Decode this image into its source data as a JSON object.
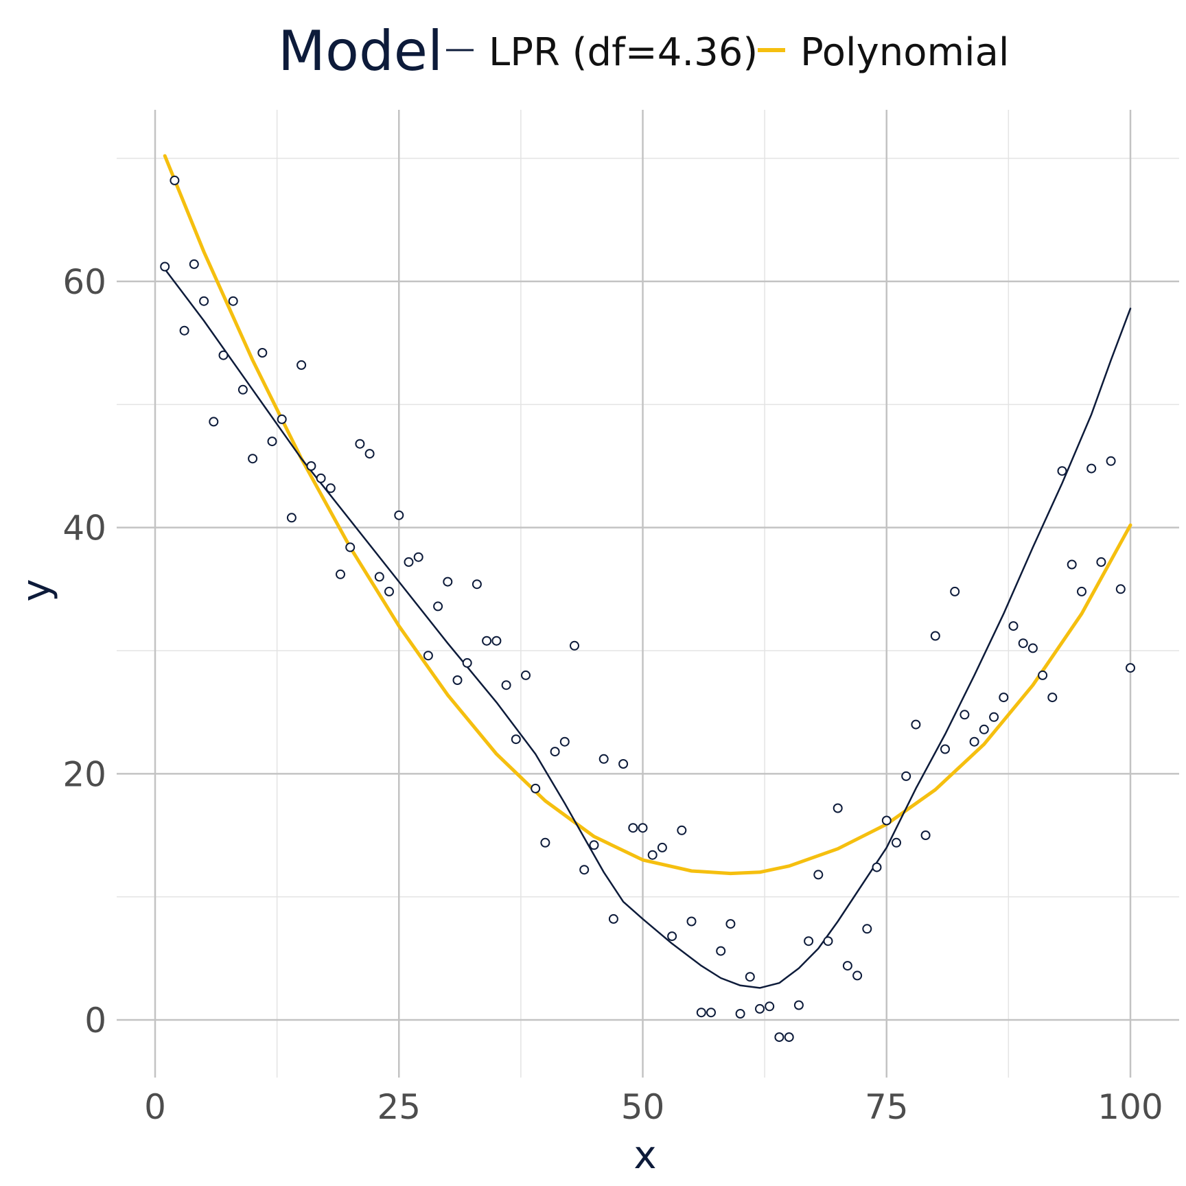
{
  "chart_data": {
    "type": "scatter",
    "title": "",
    "xlabel": "x",
    "ylabel": "y",
    "xlim": [
      -4,
      101
    ],
    "ylim": [
      -5,
      71
    ],
    "x_ticks": [
      0,
      25,
      50,
      75,
      100
    ],
    "x_tick_labels": [
      "0",
      "25",
      "50",
      "75",
      "100"
    ],
    "y_ticks": [
      0,
      20,
      40,
      60
    ],
    "y_tick_labels": [
      "0",
      "20",
      "40",
      "60"
    ],
    "grid": true,
    "legend": {
      "title": "Model",
      "placement": "top",
      "entries": [
        {
          "label": "LPR (df=4.36)",
          "color": "#0d1b3a"
        },
        {
          "label": "Polynomial",
          "color": "#f5bf0f"
        }
      ]
    },
    "points": {
      "color": "#0d1b3a",
      "x": [
        1,
        2,
        3,
        4,
        5,
        6,
        7,
        8,
        9,
        10,
        11,
        12,
        13,
        14,
        15,
        16,
        17,
        18,
        19,
        20,
        21,
        22,
        23,
        24,
        25,
        26,
        27,
        28,
        29,
        30,
        31,
        32,
        33,
        34,
        35,
        36,
        37,
        38,
        39,
        40,
        41,
        42,
        43,
        44,
        45,
        46,
        47,
        48,
        49,
        50,
        51,
        52,
        53,
        54,
        55,
        56,
        57,
        58,
        59,
        60,
        61,
        62,
        63,
        64,
        65,
        66,
        67,
        68,
        69,
        70,
        71,
        72,
        73,
        74,
        75,
        76,
        77,
        78,
        79,
        80,
        81,
        82,
        83,
        84,
        85,
        86,
        87,
        88,
        89,
        90,
        91,
        92,
        93,
        94,
        95,
        96,
        97,
        98,
        99,
        100
      ],
      "y": [
        61.2,
        68.2,
        56.0,
        61.4,
        58.4,
        48.6,
        54.0,
        58.4,
        51.2,
        45.6,
        54.2,
        47.0,
        48.8,
        40.8,
        53.2,
        45.0,
        44.0,
        43.2,
        36.2,
        38.4,
        46.8,
        46.0,
        36.0,
        34.8,
        41.0,
        37.2,
        37.6,
        29.6,
        33.6,
        35.6,
        27.6,
        29.0,
        35.4,
        30.8,
        30.8,
        27.2,
        22.8,
        28.0,
        18.8,
        14.4,
        21.8,
        22.6,
        30.4,
        12.2,
        14.2,
        21.2,
        8.2,
        20.8,
        15.6,
        15.6,
        13.4,
        14.0,
        6.8,
        15.4,
        8.0,
        0.6,
        0.6,
        5.6,
        7.8,
        0.5,
        3.5,
        0.9,
        1.1,
        -1.4,
        -1.4,
        1.2,
        6.4,
        11.8,
        6.4,
        17.2,
        4.4,
        3.6,
        7.4,
        12.4,
        16.2,
        14.4,
        19.8,
        24.0,
        15.0,
        31.2,
        22.0,
        34.8,
        24.8,
        22.6,
        23.6,
        24.6,
        26.2,
        32.0,
        30.6,
        30.2,
        28.0,
        26.2,
        44.6,
        37.0,
        34.8,
        44.8,
        37.2,
        45.4,
        35.0,
        28.6
      ]
    },
    "series": [
      {
        "name": "LPR (df=4.36)",
        "color": "#0d1b3a",
        "x": [
          1,
          5,
          10,
          15,
          20,
          25,
          30,
          35,
          39,
          42,
          44,
          46,
          48,
          50,
          53,
          56,
          58,
          60,
          62,
          64,
          66,
          68,
          70,
          72,
          75,
          78,
          81,
          84,
          87,
          90,
          93,
          96,
          98,
          100
        ],
        "y": [
          61.0,
          56.8,
          51.2,
          45.6,
          40.6,
          35.6,
          30.6,
          25.8,
          21.6,
          17.6,
          14.8,
          12.0,
          9.6,
          8.2,
          6.2,
          4.4,
          3.4,
          2.8,
          2.6,
          3.0,
          4.2,
          5.8,
          8.0,
          10.4,
          14.0,
          18.8,
          23.2,
          28.0,
          33.0,
          38.4,
          43.6,
          49.2,
          53.6,
          57.8
        ]
      },
      {
        "name": "Polynomial",
        "color": "#f5bf0f",
        "x": [
          1,
          5,
          10,
          15,
          20,
          25,
          30,
          35,
          40,
          45,
          50,
          55,
          59,
          62,
          65,
          70,
          75,
          80,
          85,
          90,
          95,
          100
        ],
        "y": [
          70.2,
          62.4,
          53.6,
          45.6,
          38.4,
          32.0,
          26.4,
          21.6,
          17.8,
          14.9,
          13.0,
          12.1,
          11.9,
          12.0,
          12.5,
          13.9,
          15.9,
          18.7,
          22.4,
          27.2,
          33.0,
          40.2
        ]
      }
    ]
  }
}
